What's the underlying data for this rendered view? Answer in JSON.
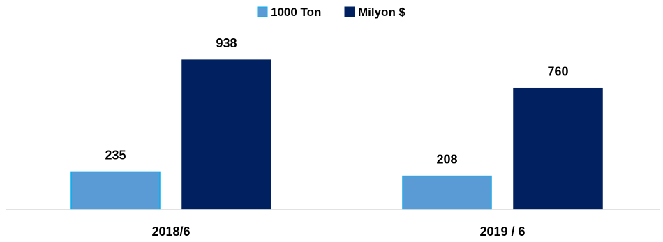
{
  "chart_data": {
    "type": "bar",
    "categories": [
      "2018/6",
      "2019 / 6"
    ],
    "series": [
      {
        "name": "1000 Ton",
        "values": [
          235,
          208
        ],
        "color": "#5b9bd5",
        "border": "#00b0f0"
      },
      {
        "name": "Milyon $",
        "values": [
          938,
          760
        ],
        "color": "#002060",
        "border": "#002060"
      }
    ],
    "ylim": [
      0,
      1000
    ],
    "grid": false,
    "legend": "top-center",
    "axis_color": "#d9d9d9"
  }
}
